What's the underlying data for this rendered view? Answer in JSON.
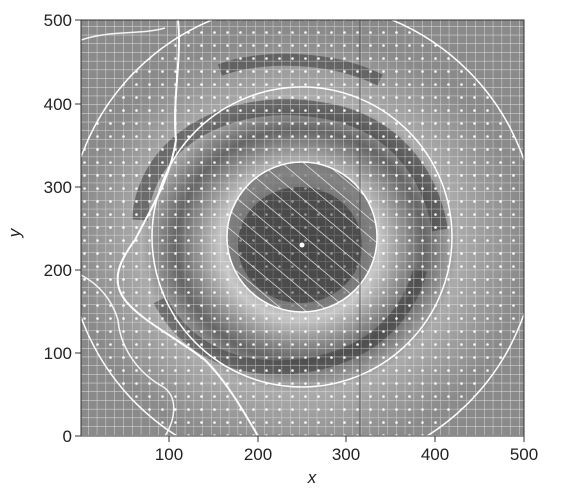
{
  "figure": {
    "xlabel": "x",
    "ylabel": "y",
    "xlim": [
      0,
      500
    ],
    "ylim": [
      0,
      500
    ],
    "x_ticks": [
      "100",
      "200",
      "300",
      "400",
      "500"
    ],
    "y_ticks": [
      "0",
      "100",
      "200",
      "300",
      "400",
      "500"
    ],
    "center": [
      250,
      225
    ],
    "ring_radii": [
      85,
      170,
      265
    ],
    "zones": [
      "hatched-core",
      "dotted-inner-ring",
      "dotted-outer-ring",
      "grid-background"
    ],
    "colors": {
      "background": "#8a8a8a",
      "overlay": "#ffffff",
      "dark_band": "#2a2a2a"
    }
  }
}
